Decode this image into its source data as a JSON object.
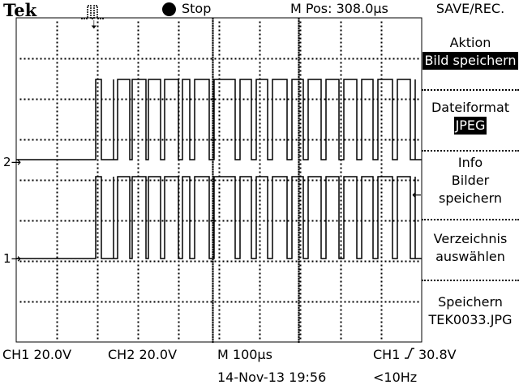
{
  "header": {
    "brand": "Tek",
    "acquisition_icon": "pulse-waveform-icon",
    "run_state": "Stop",
    "run_state_icon": "stop-dot-icon",
    "main_position": "M Pos: 308.0µs"
  },
  "markers": {
    "trigger_position_icon": "down-arrow-icon",
    "trigger_position_glyph": "🠣",
    "channel2_label": "2",
    "channel1_label": "1",
    "trigger_level_icon": "left-arrow-icon",
    "trigger_level_glyph": "←"
  },
  "menu": {
    "title": "SAVE/REC.",
    "items": [
      {
        "lines": [
          "Aktion"
        ],
        "value": "Bild speichern"
      },
      {
        "lines": [
          "Dateiformat"
        ],
        "value": "JPEG"
      },
      {
        "lines": [
          "Info",
          "Bilder",
          "speichern"
        ],
        "value": ""
      },
      {
        "lines": [
          "Verzeichnis",
          "auswählen"
        ],
        "value": ""
      },
      {
        "lines": [
          "Speichern",
          "TEK0033.JPG"
        ],
        "value": ""
      }
    ]
  },
  "status": {
    "ch1_scale": "CH1  20.0V",
    "ch2_scale": "CH2  20.0V",
    "timebase": "M 100µs",
    "trigger_source": "CH1",
    "trigger_slope_icon": "rising-edge-icon",
    "trigger_level": "30.8V",
    "date_time": "14-Nov-13 19:56",
    "trigger_frequency": "<10Hz"
  },
  "colors": {
    "background": "#ffffff",
    "trace": "#000000",
    "grid": "#000000",
    "highlight_bg": "#000000",
    "highlight_fg": "#ffffff"
  }
}
